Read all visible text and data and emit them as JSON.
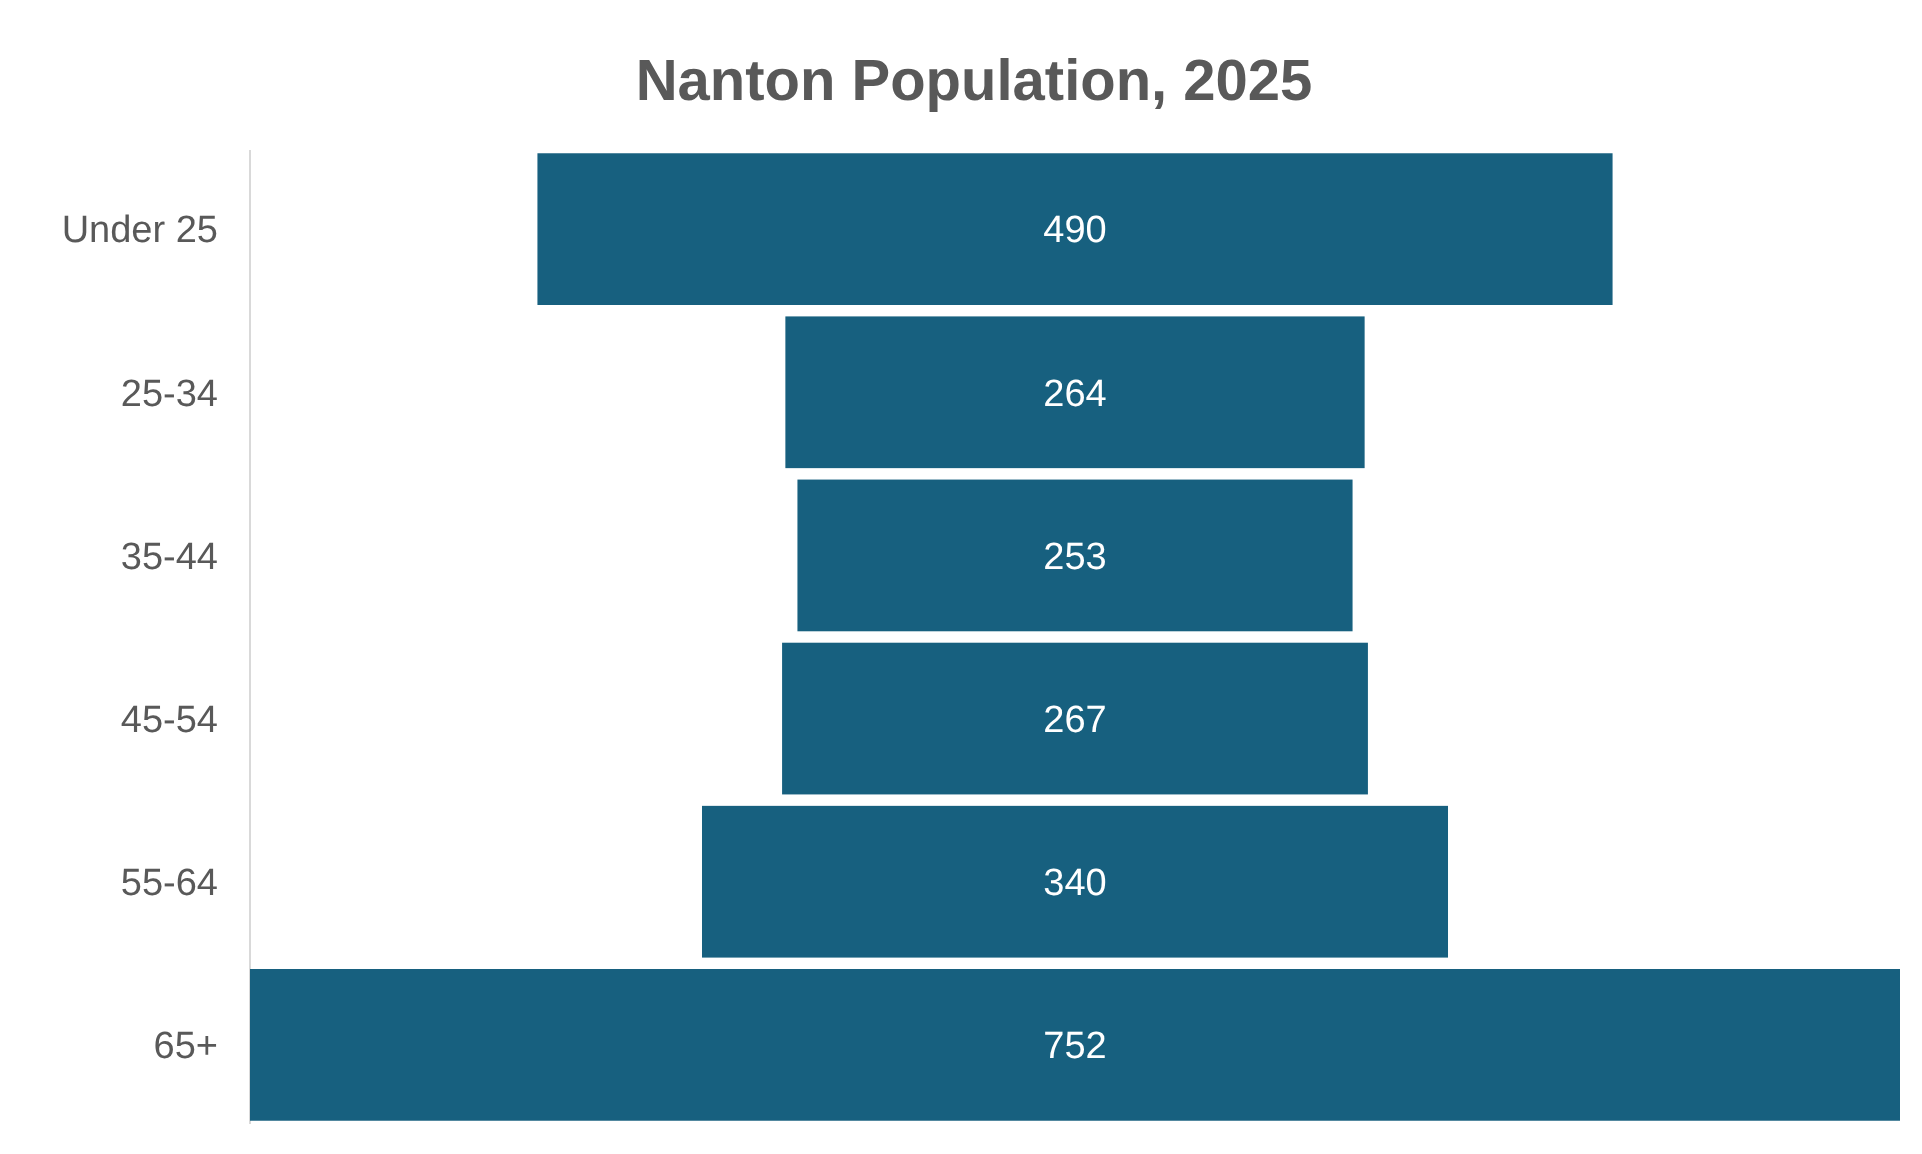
{
  "chart_data": {
    "type": "other",
    "title": "Nanton Population, 2025",
    "categories": [
      "Under 25",
      "25-34",
      "35-44",
      "45-54",
      "55-64",
      "65+"
    ],
    "values": [
      490,
      264,
      253,
      267,
      340,
      752
    ],
    "color": "#17607f",
    "data_labels": true
  }
}
